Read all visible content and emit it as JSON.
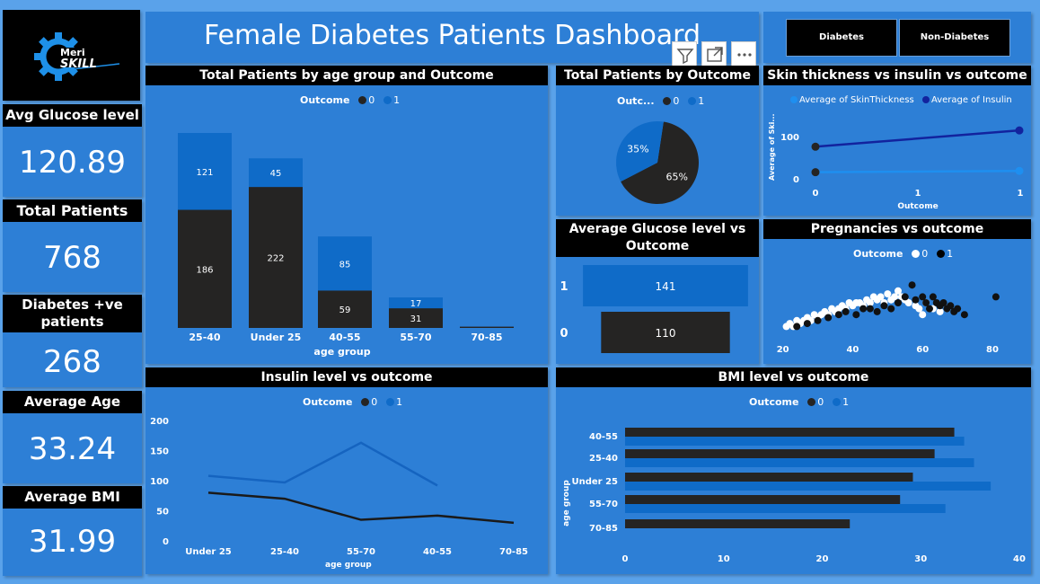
{
  "title": "Female Diabetes Patients Dashboard",
  "logo": {
    "line1": "Meri",
    "line2": "SKILL"
  },
  "kpis": {
    "glucose": {
      "label": "Avg Glucose level",
      "value": "120.89"
    },
    "total": {
      "label": "Total Patients",
      "value": "768"
    },
    "diabetes": {
      "label": "Diabetes +ve patients",
      "value": "268"
    },
    "age": {
      "label": "Average Age",
      "value": "33.24"
    },
    "bmi": {
      "label": "Average BMI",
      "value": "31.99"
    }
  },
  "slicers": [
    "Diabetes",
    "Non-Diabetes"
  ],
  "colors": {
    "outcome0": "#252423",
    "outcome1": "#0f6bc8",
    "panel": "#2d7fd6",
    "background": "#5aa2ea"
  },
  "legend": {
    "title": "Outcome",
    "short_title": "Outc...",
    "items": [
      "0",
      "1"
    ]
  },
  "icons": [
    "filter-icon",
    "focus-mode-icon",
    "more-options-icon"
  ],
  "charts": {
    "age_group": {
      "title": "Total Patients by age group and Outcome",
      "xlabel": "age group",
      "chart_data": {
        "type": "bar",
        "stacked": true,
        "categories": [
          "25-40",
          "Under 25",
          "40-55",
          "55-70",
          "70-85"
        ],
        "series": [
          {
            "name": "0",
            "values": [
              186,
              222,
              59,
              31,
              2
            ],
            "labels": [
              "186",
              "222",
              "59",
              "31",
              ""
            ]
          },
          {
            "name": "1",
            "values": [
              121,
              45,
              85,
              17,
              0
            ],
            "labels": [
              "121",
              "45",
              "85",
              "17",
              ""
            ]
          }
        ],
        "ylim": [
          0,
          307
        ]
      }
    },
    "outcome_pie": {
      "title": "Total Patients by Outcome",
      "chart_data": {
        "type": "pie",
        "categories": [
          "0",
          "1"
        ],
        "values": [
          65,
          35
        ],
        "labels": [
          "65%",
          "35%"
        ]
      }
    },
    "skin_insulin": {
      "title": "Skin thickness vs insulin vs outcome",
      "legend": [
        "Average of SkinThickness",
        "Average of Insulin"
      ],
      "xlabel": "Outcome",
      "ylabel": "Average of Ski...",
      "chart_data": {
        "type": "line",
        "x": [
          0,
          1
        ],
        "xticks": [
          "0",
          "1",
          "1"
        ],
        "yticks": [
          "0",
          "100"
        ],
        "ylim": [
          0,
          130
        ],
        "series": [
          {
            "name": "Average of SkinThickness",
            "values": [
              19.7,
              22.2
            ]
          },
          {
            "name": "Average of Insulin",
            "values": [
              68.8,
              100.3
            ]
          }
        ]
      }
    },
    "glucose_outcome": {
      "title": "Average Glucose level vs Outcome",
      "chart_data": {
        "type": "bar",
        "orientation": "horizontal",
        "categories": [
          "1",
          "0"
        ],
        "values": [
          141,
          110
        ],
        "labels": [
          "141",
          "110"
        ],
        "xlim": [
          0,
          145
        ]
      }
    },
    "pregnancies": {
      "title": "Pregnancies vs outcome",
      "chart_data": {
        "type": "scatter",
        "xticks": [
          "20",
          "40",
          "60",
          "80"
        ],
        "xlim": [
          17,
          89
        ],
        "ylim": [
          0,
          10
        ],
        "series": [
          {
            "name": "0",
            "points": [
              [
                21,
                1
              ],
              [
                22,
                1.5
              ],
              [
                23,
                1
              ],
              [
                24,
                2
              ],
              [
                25,
                1.5
              ],
              [
                26,
                2
              ],
              [
                27,
                2.5
              ],
              [
                28,
                2
              ],
              [
                29,
                3
              ],
              [
                30,
                2.5
              ],
              [
                31,
                3
              ],
              [
                32,
                3.5
              ],
              [
                33,
                3
              ],
              [
                34,
                4
              ],
              [
                35,
                3.5
              ],
              [
                36,
                4
              ],
              [
                37,
                4.5
              ],
              [
                38,
                4
              ],
              [
                39,
                5
              ],
              [
                40,
                4.5
              ],
              [
                41,
                5
              ],
              [
                42,
                5
              ],
              [
                43,
                4.5
              ],
              [
                44,
                5.5
              ],
              [
                45,
                5
              ],
              [
                46,
                6
              ],
              [
                47,
                5.5
              ],
              [
                48,
                6
              ],
              [
                49,
                5
              ],
              [
                50,
                6.5
              ],
              [
                51,
                5.5
              ],
              [
                52,
                6
              ],
              [
                53,
                7
              ],
              [
                54,
                6
              ],
              [
                55,
                5.5
              ],
              [
                56,
                5
              ],
              [
                58,
                4.5
              ],
              [
                59,
                4
              ],
              [
                60,
                3
              ],
              [
                61,
                5
              ],
              [
                63,
                4
              ],
              [
                65,
                3.5
              ],
              [
                67,
                4
              ]
            ]
          },
          {
            "name": "1",
            "points": [
              [
                24,
                1
              ],
              [
                27,
                1.5
              ],
              [
                30,
                2
              ],
              [
                33,
                2.5
              ],
              [
                36,
                3
              ],
              [
                38,
                3.5
              ],
              [
                41,
                3
              ],
              [
                43,
                4
              ],
              [
                45,
                4
              ],
              [
                47,
                3.5
              ],
              [
                49,
                4.5
              ],
              [
                51,
                4
              ],
              [
                53,
                5
              ],
              [
                55,
                6
              ],
              [
                57,
                8
              ],
              [
                58,
                5.5
              ],
              [
                60,
                6
              ],
              [
                61,
                5
              ],
              [
                62,
                4
              ],
              [
                63,
                6
              ],
              [
                64,
                5
              ],
              [
                65,
                4.5
              ],
              [
                66,
                5
              ],
              [
                67,
                4
              ],
              [
                68,
                4.5
              ],
              [
                69,
                3.5
              ],
              [
                70,
                4
              ],
              [
                72,
                3
              ],
              [
                81,
                6
              ]
            ]
          }
        ]
      }
    },
    "insulin": {
      "title": "Insulin level vs outcome",
      "xlabel": "age group",
      "chart_data": {
        "type": "line",
        "categories": [
          "Under 25",
          "25-40",
          "55-70",
          "40-55",
          "70-85"
        ],
        "yticks": [
          "0",
          "50",
          "100",
          "150",
          "200"
        ],
        "ylim": [
          0,
          200
        ],
        "series": [
          {
            "name": "0",
            "values": [
              80,
              70,
              35,
              42,
              30
            ]
          },
          {
            "name": "1",
            "values": [
              108,
              97,
              163,
              92,
              null
            ]
          }
        ]
      }
    },
    "bmi": {
      "title": "BMI level vs outcome",
      "ylabel": "age group",
      "chart_data": {
        "type": "bar",
        "orientation": "horizontal",
        "categories": [
          "40-55",
          "25-40",
          "Under 25",
          "55-70",
          "70-85"
        ],
        "xticks": [
          "0",
          "10",
          "20",
          "30",
          "40"
        ],
        "xlim": [
          0,
          40
        ],
        "series": [
          {
            "name": "0",
            "values": [
              33.4,
              31.4,
              29.2,
              27.9,
              22.8
            ]
          },
          {
            "name": "1",
            "values": [
              34.4,
              35.4,
              37.1,
              32.5,
              null
            ]
          }
        ]
      }
    }
  }
}
